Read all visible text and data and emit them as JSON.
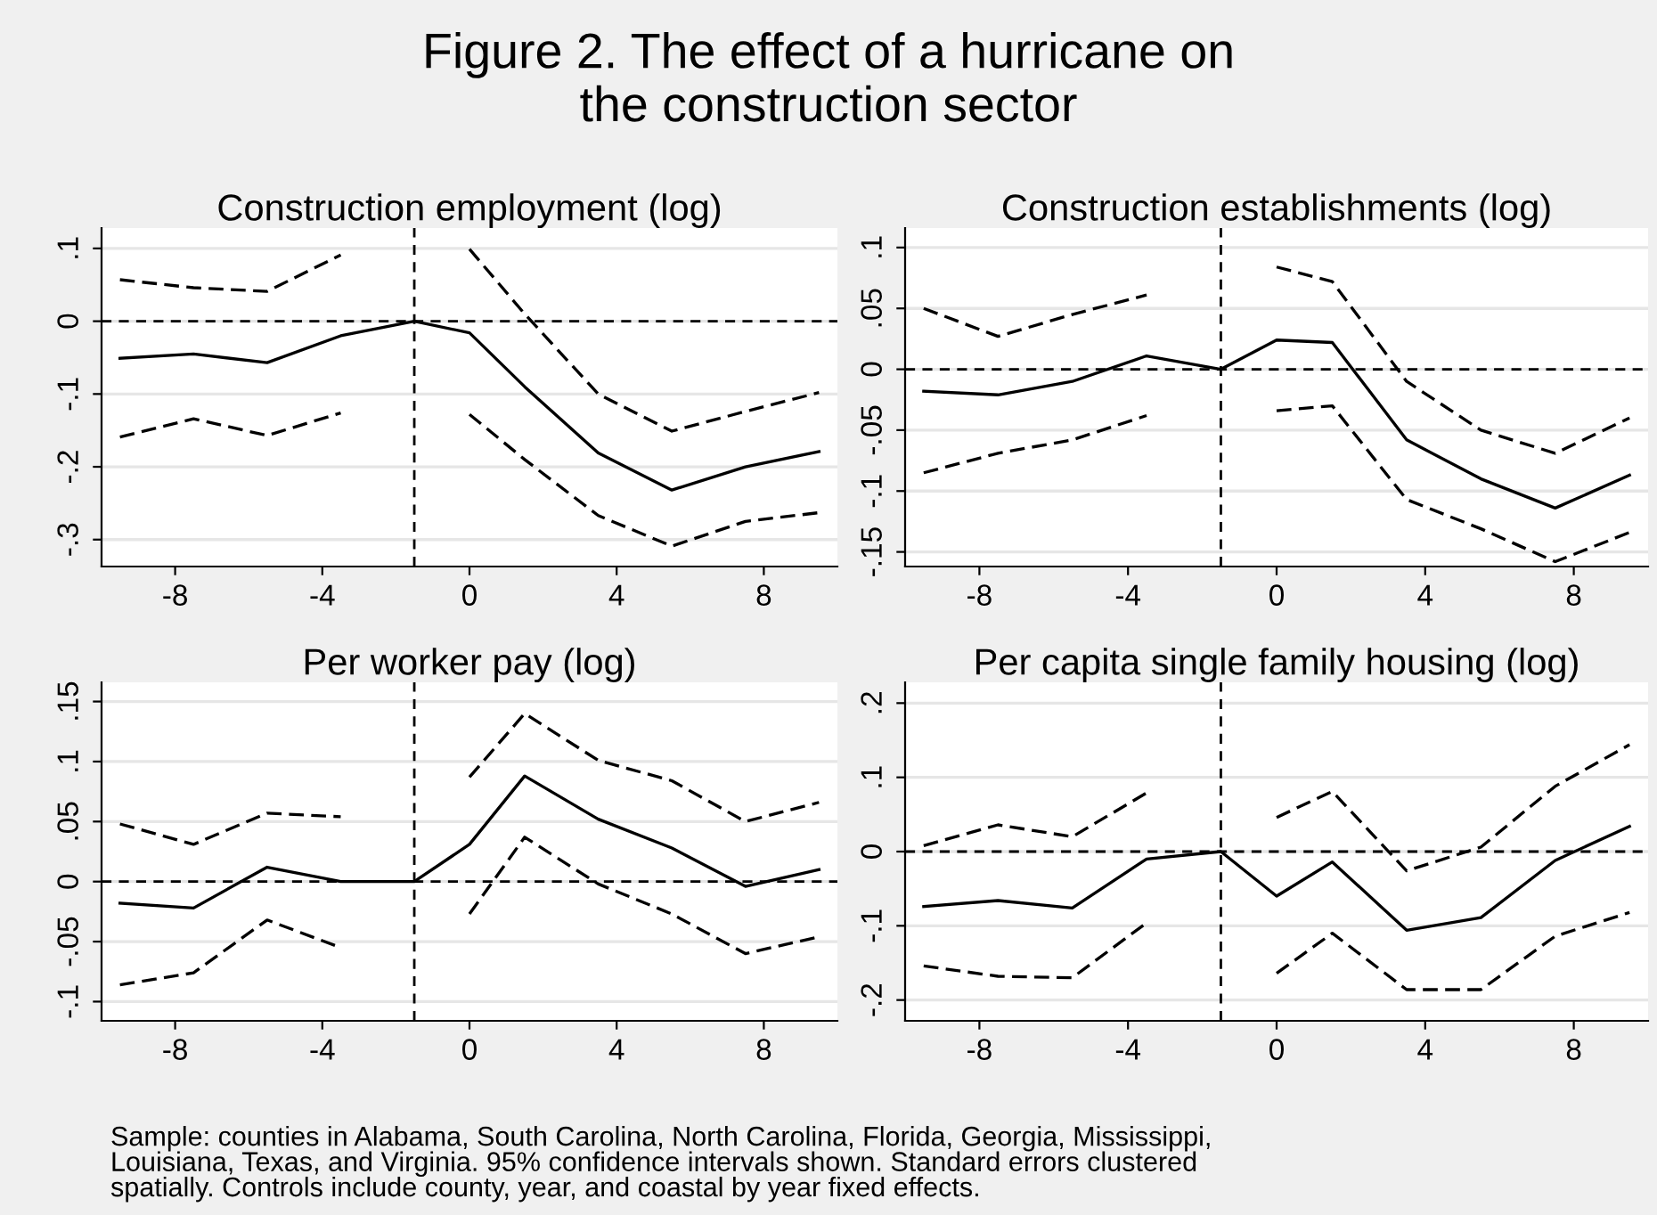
{
  "chart_data": [
    {
      "type": "line",
      "title": "Construction employment (log)",
      "x": [
        -9.5,
        -7.5,
        -5.5,
        -3.5,
        -1.5,
        0,
        1.5,
        3.5,
        5.5,
        7.5,
        9.5
      ],
      "xlim": [
        -10,
        10
      ],
      "xticks": [
        -8,
        -4,
        0,
        4,
        8
      ],
      "ylim": [
        -0.337,
        0.128
      ],
      "yticks": [
        {
          "value": -0.3,
          "label": "-.3"
        },
        {
          "value": -0.2,
          "label": "-.2"
        },
        {
          "value": -0.1,
          "label": "-.1"
        },
        0,
        {
          "value": 0.1,
          "label": ".1"
        }
      ],
      "grid": "y",
      "legend": false,
      "series": [
        {
          "color": "#000000",
          "line_style": "solid",
          "values": [
            -0.051,
            -0.045,
            -0.057,
            -0.02,
            0,
            -0.016,
            -0.09,
            -0.181,
            -0.232,
            -0.2,
            -0.179
          ]
        },
        {
          "color": "#000000",
          "line_style": "dashed",
          "values": [
            0.057,
            0.046,
            0.041,
            0.091,
            null,
            0.099,
            0.01,
            -0.1,
            -0.151,
            -0.124,
            -0.098
          ]
        },
        {
          "color": "#000000",
          "line_style": "dashed",
          "values": [
            -0.159,
            -0.134,
            -0.157,
            -0.126,
            null,
            -0.128,
            -0.19,
            -0.267,
            -0.309,
            -0.275,
            -0.263
          ]
        }
      ],
      "ref_lines": [
        {
          "axis": "y",
          "value": 0,
          "line_style": "dashed",
          "color": "#000000"
        },
        {
          "axis": "x",
          "value": -1.5,
          "line_style": "dashed",
          "color": "#000000"
        }
      ]
    },
    {
      "type": "line",
      "title": "Construction establishments (log)",
      "x": [
        -9.5,
        -7.5,
        -5.5,
        -3.5,
        -1.5,
        0,
        1.5,
        3.5,
        5.5,
        7.5,
        9.5
      ],
      "xlim": [
        -10,
        10
      ],
      "xticks": [
        -8,
        -4,
        0,
        4,
        8
      ],
      "ylim": [
        -0.162,
        0.116
      ],
      "yticks": [
        {
          "value": -0.15,
          "label": "-.15"
        },
        {
          "value": -0.1,
          "label": "-.1"
        },
        {
          "value": -0.05,
          "label": "-.05"
        },
        0,
        {
          "value": 0.05,
          "label": ".05"
        },
        {
          "value": 0.1,
          "label": ".1"
        }
      ],
      "grid": "y",
      "legend": false,
      "series": [
        {
          "color": "#000000",
          "line_style": "solid",
          "values": [
            -0.018,
            -0.021,
            -0.01,
            0.011,
            0,
            0.024,
            0.022,
            -0.058,
            -0.09,
            -0.114,
            -0.087
          ]
        },
        {
          "color": "#000000",
          "line_style": "dashed",
          "values": [
            0.05,
            0.027,
            0.045,
            0.061,
            null,
            0.084,
            0.072,
            -0.01,
            -0.05,
            -0.069,
            -0.04
          ]
        },
        {
          "color": "#000000",
          "line_style": "dashed",
          "values": [
            -0.085,
            -0.069,
            -0.058,
            -0.038,
            null,
            -0.034,
            -0.03,
            -0.107,
            -0.131,
            -0.158,
            -0.134
          ]
        }
      ],
      "ref_lines": [
        {
          "axis": "y",
          "value": 0,
          "line_style": "dashed",
          "color": "#000000"
        },
        {
          "axis": "x",
          "value": -1.5,
          "line_style": "dashed",
          "color": "#000000"
        }
      ]
    },
    {
      "type": "line",
      "title": "Per worker pay (log)",
      "x": [
        -9.5,
        -7.5,
        -5.5,
        -3.5,
        -1.5,
        0,
        1.5,
        3.5,
        5.5,
        7.5,
        9.5
      ],
      "xlim": [
        -10,
        10
      ],
      "xticks": [
        -8,
        -4,
        0,
        4,
        8
      ],
      "ylim": [
        -0.116,
        0.166
      ],
      "yticks": [
        {
          "value": -0.1,
          "label": "-.1"
        },
        {
          "value": -0.05,
          "label": "-.05"
        },
        0,
        {
          "value": 0.05,
          "label": ".05"
        },
        {
          "value": 0.1,
          "label": ".1"
        },
        {
          "value": 0.15,
          "label": ".15"
        }
      ],
      "grid": "y",
      "legend": false,
      "series": [
        {
          "color": "#000000",
          "line_style": "solid",
          "values": [
            -0.018,
            -0.022,
            0.012,
            0,
            0,
            0.031,
            0.088,
            0.052,
            0.028,
            -0.004,
            0.01
          ]
        },
        {
          "color": "#000000",
          "line_style": "dashed",
          "values": [
            0.048,
            0.031,
            0.057,
            0.054,
            null,
            0.087,
            0.14,
            0.101,
            0.084,
            0.05,
            0.066
          ]
        },
        {
          "color": "#000000",
          "line_style": "dashed",
          "values": [
            -0.086,
            -0.076,
            -0.032,
            -0.055,
            null,
            -0.027,
            0.037,
            -0.002,
            -0.027,
            -0.06,
            -0.046
          ]
        }
      ],
      "ref_lines": [
        {
          "axis": "y",
          "value": 0,
          "line_style": "dashed",
          "color": "#000000"
        },
        {
          "axis": "x",
          "value": -1.5,
          "line_style": "dashed",
          "color": "#000000"
        }
      ]
    },
    {
      "type": "line",
      "title": "Per capita single family housing (log)",
      "x": [
        -9.5,
        -7.5,
        -5.5,
        -3.5,
        -1.5,
        0,
        1.5,
        3.5,
        5.5,
        7.5,
        9.5
      ],
      "xlim": [
        -10,
        10
      ],
      "xticks": [
        -8,
        -4,
        0,
        4,
        8
      ],
      "ylim": [
        -0.228,
        0.228
      ],
      "yticks": [
        {
          "value": -0.2,
          "label": "-.2"
        },
        {
          "value": -0.1,
          "label": "-.1"
        },
        0,
        {
          "value": 0.1,
          "label": ".1"
        },
        {
          "value": 0.2,
          "label": ".2"
        }
      ],
      "grid": "y",
      "legend": false,
      "series": [
        {
          "color": "#000000",
          "line_style": "solid",
          "values": [
            -0.074,
            -0.066,
            -0.076,
            -0.01,
            0,
            -0.06,
            -0.014,
            -0.106,
            -0.089,
            -0.012,
            0.034
          ]
        },
        {
          "color": "#000000",
          "line_style": "dashed",
          "values": [
            0.008,
            0.036,
            0.02,
            0.079,
            null,
            0.046,
            0.081,
            -0.026,
            0.006,
            0.088,
            0.144
          ]
        },
        {
          "color": "#000000",
          "line_style": "dashed",
          "values": [
            -0.154,
            -0.168,
            -0.17,
            -0.096,
            null,
            -0.164,
            -0.11,
            -0.186,
            -0.186,
            -0.114,
            -0.082
          ]
        }
      ],
      "ref_lines": [
        {
          "axis": "y",
          "value": 0,
          "line_style": "dashed",
          "color": "#000000"
        },
        {
          "axis": "x",
          "value": -1.5,
          "line_style": "dashed",
          "color": "#000000"
        }
      ]
    },
    {
      "type": "other",
      "title": "Figure 2. The effect of a hurricane on\nthe construction sector",
      "annotations": [
        "Sample: counties in Alabama, South Carolina, North Carolina, Florida, Georgia, Mississippi,\nLouisiana, Texas, and Virginia. 95% confidence intervals shown. Standard errors clustered\nspatially. Controls include county, year, and coastal by year fixed effects."
      ]
    }
  ]
}
